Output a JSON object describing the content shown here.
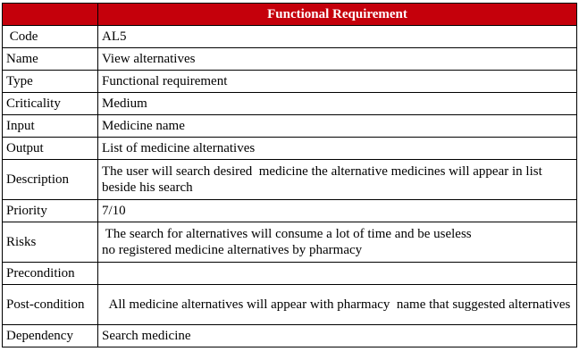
{
  "table": {
    "header": "Functional Requirement",
    "rows": [
      {
        "label": " Code",
        "value": "AL5"
      },
      {
        "label": "Name",
        "value": "View alternatives"
      },
      {
        "label": "Type",
        "value": "Functional requirement"
      },
      {
        "label": "Criticality",
        "value": "Medium"
      },
      {
        "label": "Input",
        "value": "Medicine name"
      },
      {
        "label": "Output",
        "value": "List of medicine alternatives"
      },
      {
        "label": "Description",
        "value": "The user will search desired  medicine the alternative medicines will appear in list beside his search"
      },
      {
        "label": "Priority",
        "value": "7/10"
      },
      {
        "label": "Risks",
        "value": " The search for alternatives will consume a lot of time and be useless\nno registered medicine alternatives by pharmacy"
      },
      {
        "label": "Precondition",
        "value": ""
      },
      {
        "label": "Post-condition",
        "value": "  All medicine alternatives will appear with pharmacy  name that suggested alternatives"
      },
      {
        "label": "Dependency",
        "value": "Search medicine"
      }
    ]
  },
  "colors": {
    "header_bg": "#c5000b",
    "header_text": "#ffffff",
    "border": "#000000"
  }
}
